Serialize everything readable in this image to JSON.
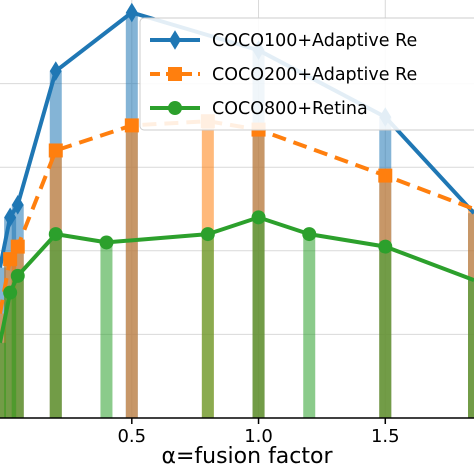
{
  "chart_data": {
    "type": "line",
    "title": "",
    "xlabel": "α=fusion factor",
    "ylabel": "",
    "x_ticks": [
      "0.5",
      "1.0",
      "1.5"
    ],
    "x_tick_values": [
      0.5,
      1.0,
      1.5
    ],
    "xlim": [
      -0.02,
      1.85
    ],
    "ylim": [
      0,
      1
    ],
    "grid": true,
    "legend_position": "top-right",
    "bars": {
      "visible": true,
      "note_colors": [
        "#1f77b4",
        "#ff7f0e",
        "#2ca02c"
      ]
    },
    "series": [
      {
        "name": "COCO100+Adaptive Re",
        "color": "#1f77b4",
        "linestyle": "solid",
        "marker": "diamond",
        "x": [
          -0.02,
          0.02,
          0.05,
          0.2,
          0.5,
          1.0,
          1.5,
          1.85
        ],
        "y": [
          0.36,
          0.48,
          0.51,
          0.83,
          0.97,
          0.88,
          0.72,
          0.49
        ]
      },
      {
        "name": "COCO200+Adaptive Re",
        "color": "#ff7f0e",
        "linestyle": "dashed",
        "marker": "square",
        "x": [
          -0.02,
          0.02,
          0.05,
          0.2,
          0.5,
          0.8,
          1.0,
          1.5,
          1.85
        ],
        "y": [
          0.25,
          0.38,
          0.41,
          0.64,
          0.7,
          0.71,
          0.69,
          0.58,
          0.5
        ]
      },
      {
        "name": "COCO800+Retina",
        "color": "#2ca02c",
        "linestyle": "solid",
        "marker": "circle",
        "x": [
          -0.02,
          0.02,
          0.05,
          0.2,
          0.4,
          0.8,
          1.0,
          1.2,
          1.5,
          1.85
        ],
        "y": [
          0.18,
          0.3,
          0.34,
          0.44,
          0.42,
          0.44,
          0.48,
          0.44,
          0.41,
          0.33
        ]
      }
    ]
  }
}
